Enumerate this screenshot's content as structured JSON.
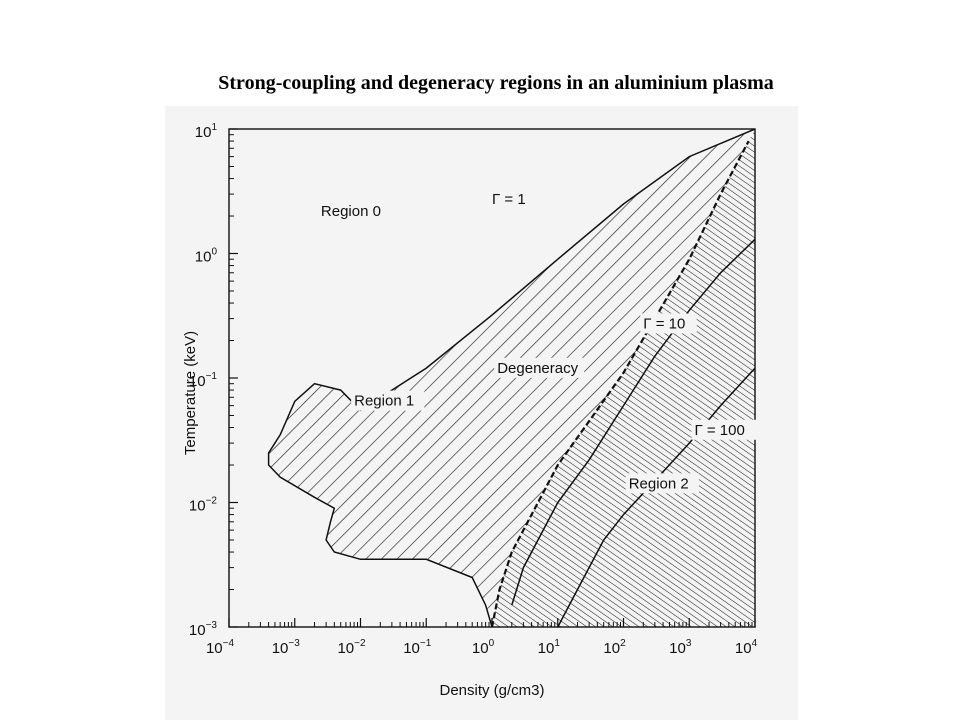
{
  "title": "Strong-coupling and degeneracy regions in an aluminium plasma",
  "chart_data": {
    "type": "area",
    "title": "Strong-coupling and degeneracy regions in an aluminium plasma",
    "xlabel": "Density (g/cm3)",
    "ylabel": "Temperature (keV)",
    "x_scale": "log",
    "y_scale": "log",
    "xlim": [
      0.0001,
      10000
    ],
    "ylim": [
      0.001,
      10
    ],
    "x_ticks": [
      {
        "base": "10",
        "exp": "−4"
      },
      {
        "base": "10",
        "exp": "−3"
      },
      {
        "base": "10",
        "exp": "−2"
      },
      {
        "base": "10",
        "exp": "−1"
      },
      {
        "base": "10",
        "exp": "0"
      },
      {
        "base": "10",
        "exp": "1"
      },
      {
        "base": "10",
        "exp": "2"
      },
      {
        "base": "10",
        "exp": "3"
      },
      {
        "base": "10",
        "exp": "4"
      }
    ],
    "y_ticks": [
      {
        "base": "10",
        "exp": "1"
      },
      {
        "base": "10",
        "exp": "0"
      },
      {
        "base": "10",
        "exp": "−1"
      },
      {
        "base": "10",
        "exp": "−2"
      },
      {
        "base": "10",
        "exp": "−3"
      }
    ],
    "grid": false,
    "legend": "none",
    "series": [
      {
        "name": "Γ = 1",
        "x": [
          10000,
          1000,
          100,
          10,
          1,
          0.1,
          0.01,
          0.005,
          0.002,
          0.001,
          0.0006,
          0.0004,
          0.0004,
          0.0006,
          0.002,
          0.004,
          0.0035,
          0.003,
          0.004,
          0.01,
          0.1,
          0.5,
          0.8,
          1
        ],
        "y": [
          10,
          6,
          2.5,
          0.9,
          0.32,
          0.12,
          0.055,
          0.08,
          0.09,
          0.065,
          0.035,
          0.025,
          0.02,
          0.016,
          0.011,
          0.009,
          0.007,
          0.005,
          0.004,
          0.0035,
          0.0035,
          0.0025,
          0.0015,
          0.001
        ]
      },
      {
        "name": "Degeneracy",
        "x": [
          1,
          1.3,
          2,
          5,
          10,
          30,
          100,
          300,
          1000,
          3000,
          8000
        ],
        "y": [
          0.001,
          0.002,
          0.004,
          0.01,
          0.02,
          0.045,
          0.11,
          0.3,
          0.9,
          3,
          8
        ]
      },
      {
        "name": "Γ = 10",
        "x": [
          2,
          3,
          10,
          30,
          100,
          300,
          1000,
          3000,
          10000
        ],
        "y": [
          0.0015,
          0.003,
          0.01,
          0.022,
          0.06,
          0.15,
          0.35,
          0.7,
          1.3
        ]
      },
      {
        "name": "Γ = 100",
        "x": [
          10,
          20,
          50,
          100,
          300,
          1000,
          3000,
          10000
        ],
        "y": [
          0.001,
          0.002,
          0.005,
          0.008,
          0.015,
          0.03,
          0.06,
          0.12
        ]
      }
    ],
    "annotations": {
      "gamma1": "Γ = 1",
      "gamma10": "Γ = 10",
      "gamma100": "Γ = 100",
      "region0": "Region 0",
      "region1": "Region 1",
      "region2": "Region 2",
      "degeneracy": "Degeneracy"
    }
  }
}
